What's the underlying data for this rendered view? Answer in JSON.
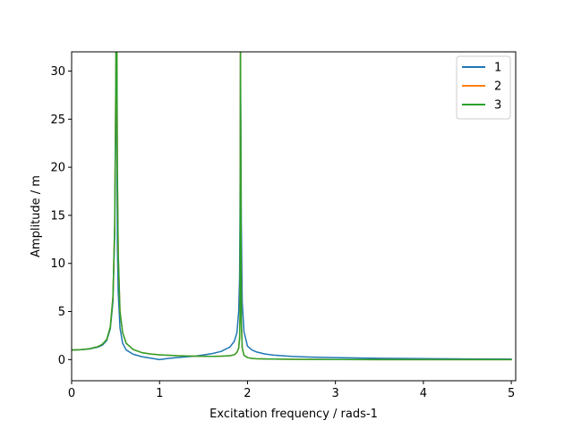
{
  "chart_data": {
    "type": "line",
    "title": "",
    "xlabel": "Excitation frequency / rads-1",
    "ylabel": "Amplitude / m",
    "xlim": [
      0,
      5.05
    ],
    "ylim": [
      -2.2,
      32
    ],
    "xticks": [
      0,
      1,
      2,
      3,
      4,
      5
    ],
    "yticks": [
      0,
      5,
      10,
      15,
      20,
      25,
      30
    ],
    "grid": false,
    "legend_position": "top-right",
    "series": [
      {
        "name": "1",
        "color": "#1f77b4",
        "x": [
          0,
          0.1,
          0.2,
          0.3,
          0.35,
          0.4,
          0.44,
          0.47,
          0.49,
          0.5,
          0.505,
          0.51,
          0.52,
          0.53,
          0.55,
          0.58,
          0.62,
          0.7,
          0.8,
          0.9,
          1.0,
          1.1,
          1.2,
          1.3,
          1.4,
          1.5,
          1.6,
          1.7,
          1.8,
          1.85,
          1.88,
          1.9,
          1.91,
          1.915,
          1.92,
          1.93,
          1.94,
          1.96,
          2.0,
          2.05,
          2.1,
          2.2,
          2.3,
          2.5,
          2.7,
          3.0,
          3.5,
          4.0,
          4.5,
          5.0
        ],
        "y": [
          1.0,
          1.02,
          1.1,
          1.3,
          1.5,
          2.0,
          3.2,
          6.0,
          13.0,
          24.0,
          32,
          32,
          12.0,
          7.0,
          3.3,
          1.7,
          1.0,
          0.55,
          0.3,
          0.15,
          0.0,
          0.12,
          0.2,
          0.28,
          0.36,
          0.48,
          0.62,
          0.85,
          1.3,
          1.9,
          2.8,
          5.0,
          8.5,
          15.0,
          32,
          14.0,
          6.0,
          2.9,
          1.4,
          1.0,
          0.8,
          0.58,
          0.46,
          0.33,
          0.26,
          0.2,
          0.14,
          0.1,
          0.07,
          0.05
        ]
      },
      {
        "name": "2",
        "color": "#ff7f0e",
        "x": [
          0,
          0.1,
          0.2,
          0.3,
          0.35,
          0.4,
          0.44,
          0.47,
          0.49,
          0.5,
          0.505,
          0.51,
          0.515,
          0.52,
          0.53,
          0.55,
          0.58,
          0.62,
          0.7,
          0.8,
          0.9,
          1.0,
          1.2,
          1.4,
          1.6,
          1.7,
          1.8,
          1.85,
          1.88,
          1.9,
          1.91,
          1.915,
          1.92,
          1.93,
          1.94,
          1.96,
          2.0,
          2.05,
          2.1,
          2.2,
          2.5,
          3.0,
          3.5,
          4.0,
          4.5,
          5.0
        ],
        "y": [
          1.0,
          1.03,
          1.12,
          1.35,
          1.6,
          2.1,
          3.4,
          6.5,
          14.0,
          26.0,
          32,
          32,
          32,
          20.0,
          11.0,
          5.0,
          2.8,
          1.7,
          1.05,
          0.72,
          0.58,
          0.5,
          0.4,
          0.36,
          0.33,
          0.35,
          0.4,
          0.5,
          0.75,
          1.2,
          2.2,
          4.5,
          32,
          4.0,
          1.2,
          0.45,
          0.2,
          0.12,
          0.09,
          0.06,
          0.03,
          0.01,
          0.0,
          0.0,
          0.0,
          0.0
        ]
      },
      {
        "name": "3",
        "color": "#2ca02c",
        "x": [
          0,
          0.1,
          0.2,
          0.3,
          0.35,
          0.4,
          0.44,
          0.47,
          0.49,
          0.5,
          0.505,
          0.51,
          0.515,
          0.52,
          0.53,
          0.55,
          0.58,
          0.62,
          0.7,
          0.8,
          0.9,
          1.0,
          1.2,
          1.4,
          1.6,
          1.7,
          1.8,
          1.85,
          1.88,
          1.9,
          1.91,
          1.915,
          1.92,
          1.93,
          1.94,
          1.96,
          2.0,
          2.05,
          2.1,
          2.2,
          2.5,
          3.0,
          3.5,
          4.0,
          4.5,
          5.0
        ],
        "y": [
          1.0,
          1.03,
          1.12,
          1.35,
          1.6,
          2.1,
          3.4,
          6.5,
          14.0,
          26.0,
          32,
          32,
          32,
          20.0,
          11.0,
          5.0,
          2.8,
          1.7,
          1.05,
          0.72,
          0.58,
          0.5,
          0.4,
          0.36,
          0.33,
          0.35,
          0.4,
          0.5,
          0.75,
          1.2,
          2.2,
          4.5,
          32,
          4.0,
          1.2,
          0.45,
          0.2,
          0.12,
          0.09,
          0.06,
          0.03,
          0.01,
          0.0,
          0.0,
          0.0,
          0.0
        ]
      }
    ]
  }
}
